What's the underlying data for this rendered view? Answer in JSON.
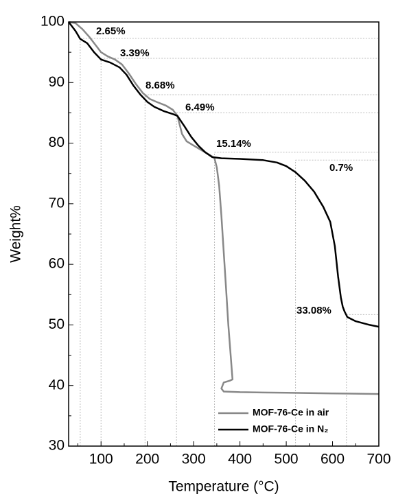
{
  "chart_data": {
    "type": "line",
    "x_label": "Temperature (°C)",
    "y_label": "Weight%",
    "xlim": [
      30,
      700
    ],
    "xticks": [
      100,
      200,
      300,
      400,
      500,
      600,
      700
    ],
    "ylim": [
      30,
      100
    ],
    "yticks": [
      30,
      40,
      50,
      60,
      70,
      80,
      90,
      100
    ],
    "legend": "lower right",
    "series": [
      {
        "name": "MOF-76-Ce in air",
        "color": "#888888",
        "x": [
          30,
          45,
          60,
          75,
          90,
          100,
          115,
          130,
          145,
          160,
          175,
          190,
          205,
          220,
          240,
          255,
          265,
          275,
          285,
          300,
          320,
          340,
          345,
          350,
          355,
          360,
          365,
          370,
          375,
          380,
          383,
          384,
          378,
          365,
          360,
          365,
          400,
          500,
          600,
          700
        ],
        "values": [
          100,
          99.8,
          98.8,
          97.5,
          96,
          95,
          94.3,
          93.8,
          93,
          91.5,
          89.8,
          88.3,
          87.3,
          86.8,
          86.2,
          85.5,
          84.5,
          81.5,
          80.3,
          79.6,
          78.7,
          77.8,
          77.5,
          76,
          73,
          68,
          62,
          56,
          50,
          45,
          42,
          41,
          40.8,
          40.5,
          39.5,
          39,
          38.9,
          38.8,
          38.7,
          38.6
        ]
      },
      {
        "name": "MOF-76-Ce in N₂",
        "color": "#000000",
        "x": [
          30,
          45,
          55,
          70,
          85,
          100,
          120,
          140,
          155,
          170,
          185,
          200,
          215,
          235,
          255,
          265,
          280,
          295,
          310,
          325,
          340,
          360,
          400,
          450,
          480,
          500,
          520,
          540,
          560,
          580,
          595,
          605,
          612,
          618,
          622,
          626,
          632,
          650,
          680,
          700
        ],
        "values": [
          100,
          98.5,
          97.2,
          96.5,
          95,
          93.8,
          93.3,
          92.5,
          91.3,
          89.5,
          88,
          86.8,
          86,
          85.3,
          84.8,
          84.5,
          82.8,
          81,
          79.6,
          78.5,
          77.7,
          77.5,
          77.4,
          77.2,
          76.8,
          76.2,
          75.2,
          73.8,
          72,
          69.5,
          67,
          63,
          58,
          54.5,
          53,
          52.2,
          51.3,
          50.6,
          50,
          49.7
        ]
      }
    ],
    "guides": [
      {
        "x": 55,
        "y": 97.3
      },
      {
        "x": 100,
        "y": 94
      },
      {
        "x": 195,
        "y": 88
      },
      {
        "x": 263,
        "y": 85
      },
      {
        "x": 345,
        "y": 78.5
      },
      {
        "x": 520,
        "y": 77.2
      },
      {
        "x": 630,
        "y": 51.7
      }
    ],
    "annotations": [
      "2.65%",
      "3.39%",
      "8.68%",
      "6.49%",
      "15.14%",
      "0.7%",
      "33.08%"
    ]
  }
}
